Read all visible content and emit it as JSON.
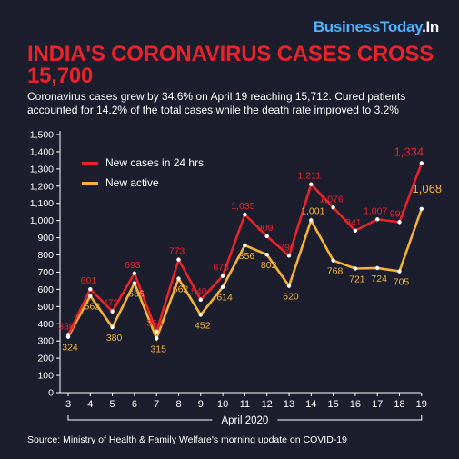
{
  "brand": {
    "name": "BusinessToday",
    "suffix": ".In"
  },
  "headline": "INDIA'S CORONAVIRUS CASES CROSS 15,700",
  "subtitle": "Coronavirus cases grew by 34.6% on April 19 reaching 15,712. Cured patients accounted for 14.2% of the total cases while the death rate improved to 3.2%",
  "source": "Source: Ministry of Health & Family Welfare's morning update on COVID-19",
  "colors": {
    "red": "#e8232a",
    "yellow": "#f5b335",
    "background": "#1c1e2e",
    "brand": "#4db3ff"
  },
  "chart_data": {
    "type": "line",
    "x": [
      3,
      4,
      5,
      6,
      7,
      8,
      9,
      10,
      11,
      12,
      13,
      14,
      15,
      16,
      17,
      18,
      19
    ],
    "xlabel": "April 2020",
    "ylabel": "",
    "ylim": [
      0,
      1500
    ],
    "yticks": [
      0,
      100,
      200,
      300,
      400,
      500,
      600,
      700,
      800,
      900,
      1000,
      1100,
      1200,
      1300,
      1400,
      1500
    ],
    "grid": false,
    "legend_position": "top-left",
    "series": [
      {
        "name": "New cases in 24 hrs",
        "color": "#e8232a",
        "values": [
          336,
          601,
          472,
          693,
          354,
          773,
          540,
          678,
          1035,
          909,
          796,
          1211,
          1076,
          941,
          1007,
          991,
          1334
        ],
        "labels": [
          "336",
          "601",
          "472",
          "693",
          "354",
          "773",
          "540",
          "678",
          "1,035",
          "909",
          "796",
          "1,211",
          "1,076",
          "941",
          "1,007",
          "991",
          "1,334"
        ]
      },
      {
        "name": "New active",
        "color": "#f5b335",
        "values": [
          324,
          562,
          380,
          636,
          315,
          662,
          452,
          614,
          856,
          802,
          620,
          1001,
          768,
          721,
          724,
          705,
          1068
        ],
        "labels": [
          "324",
          "562",
          "380",
          "636",
          "315",
          "662",
          "452",
          "614",
          "856",
          "802",
          "620",
          "1,001",
          "768",
          "721",
          "724",
          "705",
          "1,068"
        ]
      }
    ]
  }
}
